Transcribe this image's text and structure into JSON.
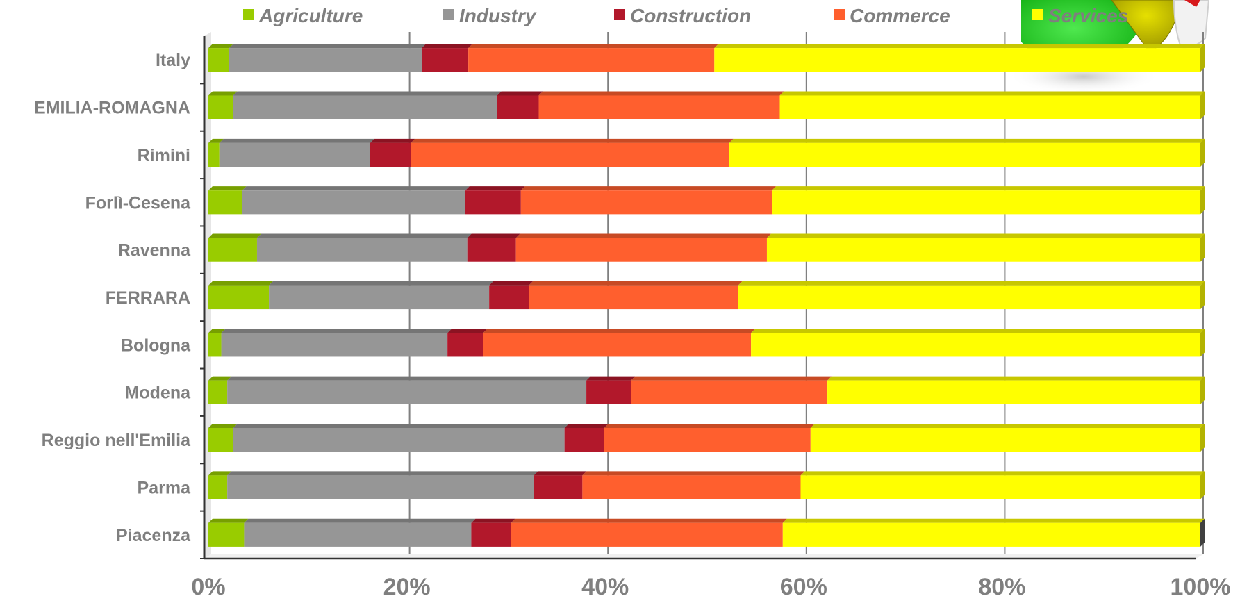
{
  "chart_data": {
    "type": "bar",
    "orientation": "horizontal",
    "stacked": "percent",
    "categories": [
      "Piacenza",
      "Parma",
      "Reggio nell'Emilia",
      "Modena",
      "Bologna",
      "FERRARA",
      "Ravenna",
      "Forlì-Cesena",
      "Rimini",
      "EMILIA-ROMAGNA",
      "Italy"
    ],
    "series": [
      {
        "name": "Agriculture",
        "color": "#99cc00",
        "values": [
          3.6,
          1.9,
          2.5,
          1.9,
          1.3,
          6.1,
          4.9,
          3.4,
          1.1,
          2.5,
          2.1
        ]
      },
      {
        "name": "Industry",
        "color": "#969696",
        "values": [
          22.9,
          30.9,
          33.4,
          36.2,
          22.8,
          22.2,
          21.2,
          22.5,
          15.2,
          26.6,
          19.4
        ]
      },
      {
        "name": "Construction",
        "color": "#b2182b",
        "values": [
          4.0,
          4.9,
          4.0,
          4.5,
          3.6,
          4.0,
          4.9,
          5.6,
          4.1,
          4.2,
          4.7
        ]
      },
      {
        "name": "Commerce",
        "color": "#ff5f2e",
        "values": [
          27.4,
          22.0,
          20.8,
          19.8,
          27.0,
          21.1,
          25.3,
          25.3,
          32.1,
          24.3,
          24.8
        ]
      },
      {
        "name": "Services",
        "color": "#ffff00",
        "values": [
          42.1,
          40.3,
          39.3,
          37.6,
          45.3,
          46.6,
          43.7,
          43.2,
          47.5,
          42.4,
          49.0
        ]
      }
    ],
    "xlim": [
      0,
      100
    ],
    "x_ticks": [
      "0%",
      "20%",
      "40%",
      "60%",
      "80%",
      "100%"
    ],
    "grid": true,
    "legend_position": "top",
    "title": "",
    "xlabel": "",
    "ylabel": ""
  }
}
